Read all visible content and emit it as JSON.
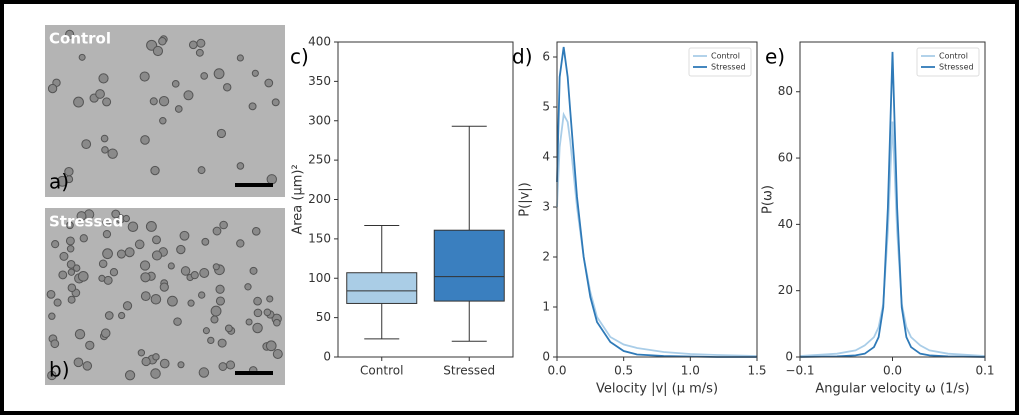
{
  "images": [
    {
      "label": "Control",
      "panel": "a)"
    },
    {
      "label": "Stressed",
      "panel": "b)"
    }
  ],
  "chart_data": [
    {
      "type": "box",
      "panel": "c)",
      "ylabel": "Area (μm)²",
      "ylim": [
        0,
        400
      ],
      "yticks": [
        0,
        50,
        100,
        150,
        200,
        250,
        300,
        350,
        400
      ],
      "boxes": [
        {
          "name": "Control",
          "color": "#aacde6",
          "whisker_low": 23,
          "q1": 68,
          "median": 84,
          "q3": 107,
          "whisker_high": 167
        },
        {
          "name": "Stressed",
          "color": "#3a7fbf",
          "whisker_low": 20,
          "q1": 71,
          "median": 102,
          "q3": 161,
          "whisker_high": 293
        }
      ]
    },
    {
      "type": "line",
      "panel": "d)",
      "xlabel": "Velocity |v| (μ m/s)",
      "ylabel": "P(|v|)",
      "xlim": [
        0,
        1.5
      ],
      "xticks": [
        {
          "value": 0,
          "label": "0.0"
        },
        0.5,
        {
          "value": 1,
          "label": "1.0"
        },
        1.5
      ],
      "ylim": [
        0,
        6.3
      ],
      "yticks": [
        0,
        1,
        2,
        3,
        4,
        5,
        6
      ],
      "legend": "upper right",
      "x": [
        0,
        0.02,
        0.05,
        0.08,
        0.1,
        0.15,
        0.2,
        0.25,
        0.3,
        0.4,
        0.5,
        0.6,
        0.8,
        1.0,
        1.2,
        1.5
      ],
      "series": [
        {
          "name": "Control",
          "color": "#a9cde8",
          "values": [
            3.0,
            4.2,
            4.85,
            4.7,
            4.3,
            3.0,
            2.0,
            1.3,
            0.8,
            0.4,
            0.25,
            0.18,
            0.1,
            0.06,
            0.04,
            0.02
          ]
        },
        {
          "name": "Stressed",
          "color": "#2f7ab8",
          "values": [
            3.5,
            5.6,
            6.2,
            5.6,
            4.9,
            3.2,
            2.0,
            1.2,
            0.7,
            0.3,
            0.12,
            0.05,
            0.02,
            0.01,
            0,
            0
          ]
        }
      ]
    },
    {
      "type": "line",
      "panel": "e)",
      "xlabel": "Angular velocity ω (1/s)",
      "ylabel": "P(ω)",
      "xlim": [
        -0.1,
        0.1
      ],
      "xticks": [
        {
          "value": -0.1,
          "label": "−0.1"
        },
        {
          "value": 0,
          "label": "0.0"
        },
        0.1
      ],
      "ylim": [
        0,
        95
      ],
      "yticks": [
        0,
        20,
        40,
        60,
        80
      ],
      "legend": "upper right",
      "x": [
        -0.1,
        -0.06,
        -0.04,
        -0.03,
        -0.02,
        -0.015,
        -0.01,
        -0.005,
        0,
        0.005,
        0.01,
        0.015,
        0.02,
        0.03,
        0.04,
        0.06,
        0.1
      ],
      "series": [
        {
          "name": "Control",
          "color": "#a9cde8",
          "values": [
            0.3,
            1,
            2,
            3.5,
            6,
            9,
            16,
            38,
            71,
            38,
            16,
            9,
            6,
            3.5,
            2,
            1,
            0.3
          ]
        },
        {
          "name": "Stressed",
          "color": "#2f7ab8",
          "values": [
            0,
            0.2,
            0.5,
            1,
            3,
            6,
            15,
            45,
            92,
            45,
            15,
            6,
            3,
            1,
            0.5,
            0.2,
            0
          ]
        }
      ]
    }
  ]
}
